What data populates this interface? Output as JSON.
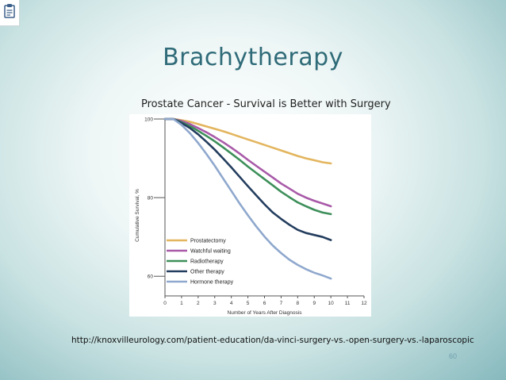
{
  "slide": {
    "title": "Brachytherapy",
    "source": "http://knoxvilleurology.com/patient-education/da-vinci-surgery-vs.-open-surgery-vs.-laparoscopic",
    "page_number": "60"
  },
  "icons": {
    "corner": "clipboard-icon"
  },
  "chart_data": {
    "type": "line",
    "title": "Prostate Cancer - Survival is Better with Surgery",
    "xlabel": "Number of Years After Diagnosis",
    "ylabel": "Cumulative Survival, %",
    "xlim": [
      0,
      12
    ],
    "ylim": [
      55,
      100
    ],
    "x_ticks": [
      0,
      1,
      2,
      3,
      4,
      5,
      6,
      7,
      8,
      9,
      10,
      11,
      12
    ],
    "y_ticks": [
      60,
      80,
      100
    ],
    "grid": false,
    "legend_position": "bottom-left",
    "x": [
      0,
      0.5,
      1,
      1.5,
      2,
      2.5,
      3,
      3.5,
      4,
      4.5,
      5,
      5.5,
      6,
      6.5,
      7,
      7.5,
      8,
      8.5,
      9,
      9.5,
      10
    ],
    "series": [
      {
        "name": "Prostatectomy",
        "color": "#e3b55e",
        "values": [
          100,
          100,
          99.7,
          99.3,
          98.7,
          98.1,
          97.5,
          96.9,
          96.2,
          95.5,
          94.8,
          94.1,
          93.4,
          92.7,
          92,
          91.3,
          90.6,
          90,
          89.5,
          89,
          88.7
        ]
      },
      {
        "name": "Watchful waiting",
        "color": "#a85aa8",
        "values": [
          100,
          100,
          99.5,
          98.7,
          97.7,
          96.6,
          95.4,
          94.1,
          92.7,
          91.2,
          89.6,
          88.1,
          86.6,
          85.1,
          83.6,
          82.3,
          81,
          80,
          79.2,
          78.5,
          77.8
        ]
      },
      {
        "name": "Radiotherapy",
        "color": "#3d8f5a",
        "values": [
          100,
          100,
          99.2,
          98.2,
          97,
          95.7,
          94.3,
          92.8,
          91.2,
          89.6,
          87.9,
          86.3,
          84.7,
          83.1,
          81.5,
          80.1,
          78.8,
          77.8,
          76.9,
          76.2,
          75.8
        ]
      },
      {
        "name": "Other therapy",
        "color": "#233d5e",
        "values": [
          100,
          100,
          99,
          97.7,
          96.1,
          94.2,
          92.2,
          90,
          87.7,
          85.3,
          82.9,
          80.6,
          78.3,
          76.2,
          74.6,
          73.1,
          71.8,
          71,
          70.5,
          70,
          69.2
        ]
      },
      {
        "name": "Hormone therapy",
        "color": "#8fa8cd",
        "values": [
          100,
          100,
          98.5,
          96.4,
          93.9,
          91.1,
          88.1,
          84.9,
          81.7,
          78.5,
          75.5,
          72.7,
          70.1,
          67.8,
          65.9,
          64.2,
          62.9,
          61.8,
          60.9,
          60.2,
          59.4
        ]
      }
    ]
  }
}
